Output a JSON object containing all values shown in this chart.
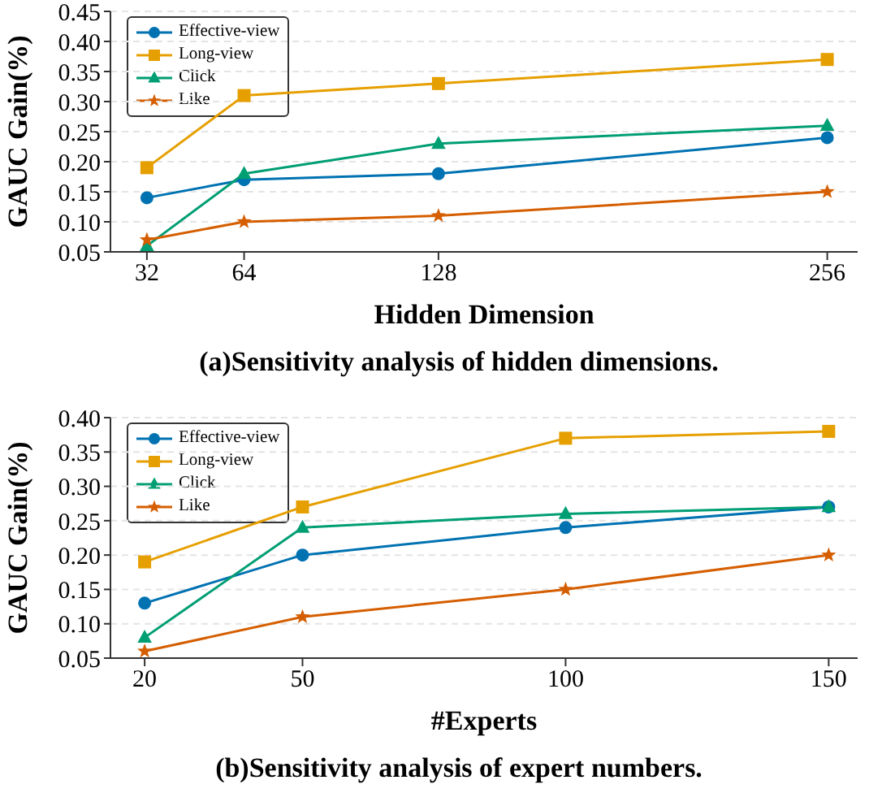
{
  "chart_data": [
    {
      "type": "line",
      "title": "(a)Sensitivity analysis of hidden dimensions.",
      "xlabel": "Hidden Dimension",
      "ylabel": "GAUC Gain(%)",
      "x": [
        32,
        64,
        128,
        256
      ],
      "xlim": [
        20,
        266
      ],
      "xticks": [
        32,
        64,
        128,
        256
      ],
      "ylim": [
        0.05,
        0.45
      ],
      "yticks": [
        {
          "value": 0.05,
          "label": "0.05"
        },
        {
          "value": 0.1,
          "label": "0.10"
        },
        {
          "value": 0.15,
          "label": "0.15"
        },
        {
          "value": 0.2,
          "label": "0.20"
        },
        {
          "value": 0.25,
          "label": "0.25"
        },
        {
          "value": 0.3,
          "label": "0.30"
        },
        {
          "value": 0.35,
          "label": "0.35"
        },
        {
          "value": 0.4,
          "label": "0.40"
        },
        {
          "value": 0.45,
          "label": "0.45"
        }
      ],
      "grid": "y",
      "legend": "top left",
      "line_style": "solid",
      "series": [
        {
          "name": "Effective-view",
          "color": "#0072b2",
          "marker": "circle",
          "values": [
            0.14,
            0.17,
            0.18,
            0.24
          ]
        },
        {
          "name": "Long-view",
          "color": "#e69f00",
          "marker": "square",
          "values": [
            0.19,
            0.31,
            0.33,
            0.37
          ]
        },
        {
          "name": "Click",
          "color": "#009e73",
          "marker": "triangle",
          "values": [
            0.06,
            0.18,
            0.23,
            0.26
          ]
        },
        {
          "name": "Like",
          "color": "#d55e00",
          "marker": "star",
          "values": [
            0.07,
            0.1,
            0.11,
            0.15
          ]
        }
      ]
    },
    {
      "type": "line",
      "title": "(b)Sensitivity analysis of expert numbers.",
      "xlabel": "#Experts",
      "ylabel": "GAUC Gain(%)",
      "x": [
        20,
        50,
        100,
        150
      ],
      "xlim": [
        13.5,
        155.5
      ],
      "xticks": [
        20,
        50,
        100,
        150
      ],
      "ylim": [
        0.05,
        0.4
      ],
      "yticks": [
        {
          "value": 0.05,
          "label": "0.05"
        },
        {
          "value": 0.1,
          "label": "0.10"
        },
        {
          "value": 0.15,
          "label": "0.15"
        },
        {
          "value": 0.2,
          "label": "0.20"
        },
        {
          "value": 0.25,
          "label": "0.25"
        },
        {
          "value": 0.3,
          "label": "0.30"
        },
        {
          "value": 0.35,
          "label": "0.35"
        },
        {
          "value": 0.4,
          "label": "0.40"
        }
      ],
      "grid": "y",
      "legend": "top left",
      "line_style": "solid",
      "series": [
        {
          "name": "Effective-view",
          "color": "#0072b2",
          "marker": "circle",
          "values": [
            0.13,
            0.2,
            0.24,
            0.27
          ]
        },
        {
          "name": "Long-view",
          "color": "#e69f00",
          "marker": "square",
          "values": [
            0.19,
            0.27,
            0.37,
            0.38
          ]
        },
        {
          "name": "Click",
          "color": "#009e73",
          "marker": "triangle",
          "values": [
            0.08,
            0.24,
            0.26,
            0.27
          ]
        },
        {
          "name": "Like",
          "color": "#d55e00",
          "marker": "star",
          "values": [
            0.06,
            0.11,
            0.15,
            0.2
          ]
        }
      ]
    }
  ]
}
